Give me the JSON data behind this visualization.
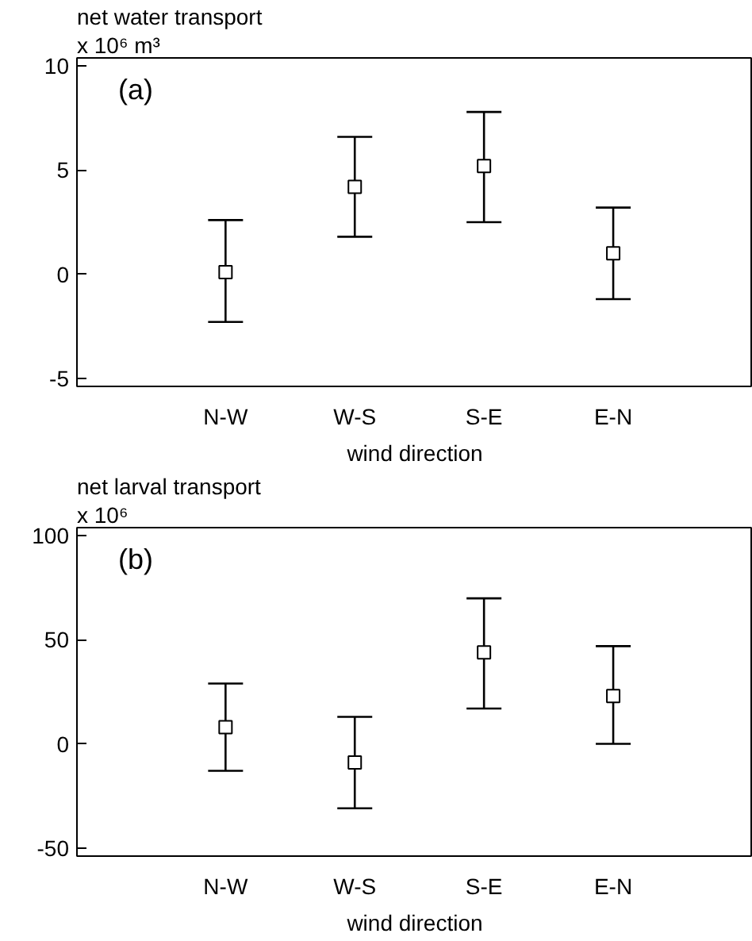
{
  "chart_data": [
    {
      "type": "scatter",
      "ylabel": "net water transport",
      "xlabel": "wind direction",
      "categories": [
        "N-W",
        "W-S",
        "S-E",
        "E-N"
      ],
      "values": [
        0.1,
        4.2,
        5.2,
        1.0
      ],
      "errors": [
        [
          -2.3,
          2.6
        ],
        [
          1.8,
          6.6
        ],
        [
          2.5,
          7.8
        ],
        [
          -1.2,
          3.2
        ]
      ],
      "color": "#000000",
      "marker": "square",
      "ylim": [
        -5.4,
        10.4
      ],
      "yticks": [
        -5,
        0,
        5,
        10
      ],
      "grid": false,
      "annotations": [
        "x 10⁶ m³",
        "(a)"
      ]
    },
    {
      "type": "scatter",
      "ylabel": "net larval transport",
      "xlabel": "wind direction",
      "categories": [
        "N-W",
        "W-S",
        "S-E",
        "E-N"
      ],
      "values": [
        8,
        -9,
        44,
        23
      ],
      "errors": [
        [
          -13,
          29
        ],
        [
          -31,
          13
        ],
        [
          17,
          70
        ],
        [
          0,
          47
        ]
      ],
      "color": "#000000",
      "marker": "square",
      "ylim": [
        -54,
        104
      ],
      "yticks": [
        -50,
        0,
        50,
        100
      ],
      "grid": false,
      "annotations": [
        "x 10⁶",
        "(b)"
      ]
    }
  ]
}
